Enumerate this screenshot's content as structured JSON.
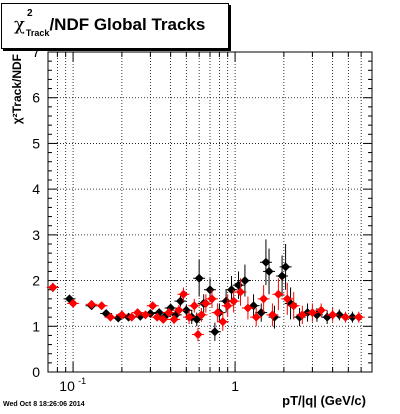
{
  "title": {
    "symbol": "χ",
    "superscript": "2",
    "subscript": "Track",
    "rest": "/NDF  Global Tracks"
  },
  "footer": "Wed Oct  8 18:26:06 2014",
  "colors": {
    "series_black": "#000000",
    "series_red": "#ff0000",
    "grid": "#000000"
  },
  "chart_data": {
    "type": "scatter",
    "title": "χ²Track/NDF  Global Tracks",
    "xlabel": "pT/|q| (GeV/c)",
    "ylabel": "χ²Track/NDF",
    "x_scale": "log",
    "xlim": [
      0.07,
      7.0
    ],
    "ylim": [
      0,
      7
    ],
    "x_tick_labels": [
      {
        "value": 0.1,
        "label": "10",
        "exp": "-1"
      },
      {
        "value": 1,
        "label": "1",
        "exp": ""
      }
    ],
    "y_tick_labels": [
      "0",
      "1",
      "2",
      "3",
      "4",
      "5",
      "6",
      "7"
    ],
    "grid": true,
    "series": [
      {
        "color": "#000000",
        "marker": "diamond",
        "points": [
          {
            "x": 0.075,
            "y": 1.85,
            "e": 0.1
          },
          {
            "x": 0.095,
            "y": 1.6,
            "e": 0.08
          },
          {
            "x": 0.13,
            "y": 1.45,
            "e": 0.06
          },
          {
            "x": 0.16,
            "y": 1.28,
            "e": 0.05
          },
          {
            "x": 0.19,
            "y": 1.18,
            "e": 0.05
          },
          {
            "x": 0.22,
            "y": 1.2,
            "e": 0.05
          },
          {
            "x": 0.26,
            "y": 1.22,
            "e": 0.05
          },
          {
            "x": 0.3,
            "y": 1.28,
            "e": 0.06
          },
          {
            "x": 0.34,
            "y": 1.3,
            "e": 0.08
          },
          {
            "x": 0.37,
            "y": 1.22,
            "e": 0.08
          },
          {
            "x": 0.4,
            "y": 1.4,
            "e": 0.1
          },
          {
            "x": 0.43,
            "y": 1.25,
            "e": 0.1
          },
          {
            "x": 0.46,
            "y": 1.55,
            "e": 0.12
          },
          {
            "x": 0.5,
            "y": 1.35,
            "e": 0.12
          },
          {
            "x": 0.54,
            "y": 1.2,
            "e": 0.15
          },
          {
            "x": 0.58,
            "y": 1.15,
            "e": 0.15
          },
          {
            "x": 0.6,
            "y": 2.05,
            "e": 0.4
          },
          {
            "x": 0.64,
            "y": 1.5,
            "e": 0.2
          },
          {
            "x": 0.7,
            "y": 1.8,
            "e": 0.25
          },
          {
            "x": 0.75,
            "y": 0.88,
            "e": 0.2
          },
          {
            "x": 0.8,
            "y": 1.3,
            "e": 0.2
          },
          {
            "x": 0.88,
            "y": 1.55,
            "e": 0.25
          },
          {
            "x": 0.95,
            "y": 1.8,
            "e": 0.3
          },
          {
            "x": 1.05,
            "y": 1.9,
            "e": 0.3
          },
          {
            "x": 1.15,
            "y": 2.0,
            "e": 0.35
          },
          {
            "x": 1.3,
            "y": 1.45,
            "e": 0.25
          },
          {
            "x": 1.45,
            "y": 1.3,
            "e": 0.2
          },
          {
            "x": 1.55,
            "y": 2.4,
            "e": 0.5
          },
          {
            "x": 1.62,
            "y": 2.2,
            "e": 0.5
          },
          {
            "x": 1.75,
            "y": 1.2,
            "e": 0.25
          },
          {
            "x": 1.95,
            "y": 2.1,
            "e": 0.45
          },
          {
            "x": 2.05,
            "y": 2.3,
            "e": 0.5
          },
          {
            "x": 2.2,
            "y": 1.5,
            "e": 0.35
          },
          {
            "x": 2.5,
            "y": 1.2,
            "e": 0.2
          },
          {
            "x": 2.8,
            "y": 1.3,
            "e": 0.2
          },
          {
            "x": 3.2,
            "y": 1.25,
            "e": 0.15
          },
          {
            "x": 3.7,
            "y": 1.2,
            "e": 0.15
          },
          {
            "x": 4.4,
            "y": 1.25,
            "e": 0.12
          },
          {
            "x": 5.3,
            "y": 1.2,
            "e": 0.12
          }
        ]
      },
      {
        "color": "#ff0000",
        "marker": "diamond",
        "points": [
          {
            "x": 0.075,
            "y": 1.85,
            "e": 0.1
          },
          {
            "x": 0.1,
            "y": 1.5,
            "e": 0.08
          },
          {
            "x": 0.13,
            "y": 1.48,
            "e": 0.06
          },
          {
            "x": 0.15,
            "y": 1.45,
            "e": 0.05
          },
          {
            "x": 0.17,
            "y": 1.2,
            "e": 0.05
          },
          {
            "x": 0.2,
            "y": 1.25,
            "e": 0.05
          },
          {
            "x": 0.23,
            "y": 1.2,
            "e": 0.05
          },
          {
            "x": 0.25,
            "y": 1.3,
            "e": 0.05
          },
          {
            "x": 0.28,
            "y": 1.25,
            "e": 0.06
          },
          {
            "x": 0.31,
            "y": 1.45,
            "e": 0.08
          },
          {
            "x": 0.33,
            "y": 1.2,
            "e": 0.08
          },
          {
            "x": 0.36,
            "y": 1.15,
            "e": 0.08
          },
          {
            "x": 0.39,
            "y": 1.3,
            "e": 0.1
          },
          {
            "x": 0.42,
            "y": 1.15,
            "e": 0.1
          },
          {
            "x": 0.45,
            "y": 1.35,
            "e": 0.12
          },
          {
            "x": 0.48,
            "y": 1.7,
            "e": 0.15
          },
          {
            "x": 0.52,
            "y": 1.2,
            "e": 0.15
          },
          {
            "x": 0.56,
            "y": 1.45,
            "e": 0.15
          },
          {
            "x": 0.59,
            "y": 0.82,
            "e": 0.15
          },
          {
            "x": 0.62,
            "y": 1.25,
            "e": 0.15
          },
          {
            "x": 0.66,
            "y": 1.5,
            "e": 0.2
          },
          {
            "x": 0.72,
            "y": 1.6,
            "e": 0.2
          },
          {
            "x": 0.78,
            "y": 1.3,
            "e": 0.2
          },
          {
            "x": 0.84,
            "y": 1.1,
            "e": 0.2
          },
          {
            "x": 0.9,
            "y": 1.45,
            "e": 0.25
          },
          {
            "x": 0.98,
            "y": 1.55,
            "e": 0.25
          },
          {
            "x": 1.08,
            "y": 1.75,
            "e": 0.3
          },
          {
            "x": 1.2,
            "y": 1.4,
            "e": 0.25
          },
          {
            "x": 1.35,
            "y": 1.2,
            "e": 0.2
          },
          {
            "x": 1.5,
            "y": 1.6,
            "e": 0.3
          },
          {
            "x": 1.7,
            "y": 1.25,
            "e": 0.25
          },
          {
            "x": 1.85,
            "y": 1.7,
            "e": 0.35
          },
          {
            "x": 2.1,
            "y": 1.6,
            "e": 0.35
          },
          {
            "x": 2.3,
            "y": 1.45,
            "e": 0.3
          },
          {
            "x": 2.6,
            "y": 1.25,
            "e": 0.2
          },
          {
            "x": 3.0,
            "y": 1.3,
            "e": 0.2
          },
          {
            "x": 3.4,
            "y": 1.35,
            "e": 0.15
          },
          {
            "x": 4.0,
            "y": 1.25,
            "e": 0.15
          },
          {
            "x": 4.8,
            "y": 1.2,
            "e": 0.12
          },
          {
            "x": 5.8,
            "y": 1.2,
            "e": 0.12
          }
        ]
      }
    ]
  }
}
